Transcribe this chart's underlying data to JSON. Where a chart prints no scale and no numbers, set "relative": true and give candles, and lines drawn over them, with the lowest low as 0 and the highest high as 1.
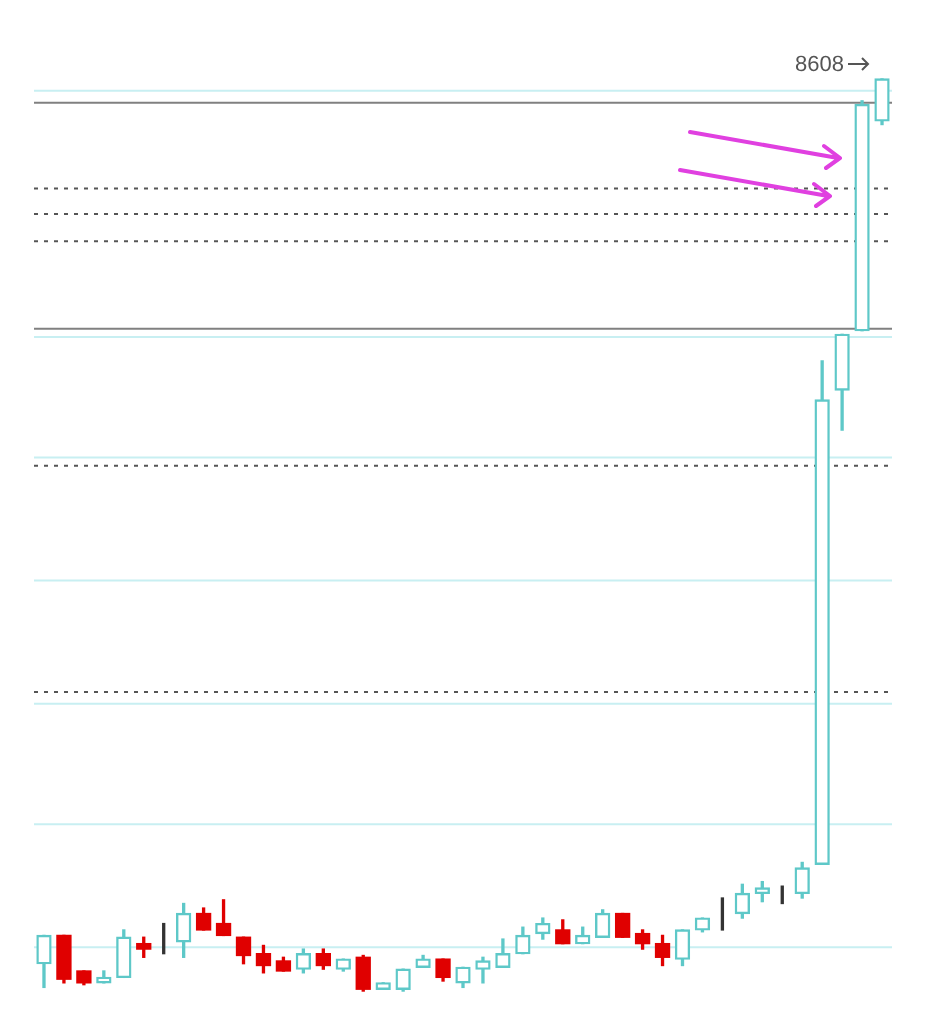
{
  "chart_data": {
    "type": "candlestick",
    "relative": true,
    "legend": false,
    "categories": [
      null,
      null,
      null,
      null,
      null,
      null,
      null,
      null,
      null,
      null,
      null,
      null,
      null,
      null,
      null,
      null,
      null,
      null,
      null,
      null,
      null,
      null,
      null,
      null,
      null,
      null,
      null,
      null,
      null,
      null,
      null,
      null,
      null,
      null,
      null,
      null,
      null,
      null,
      null,
      null,
      null,
      null,
      null
    ],
    "ohlc": [
      [
        0.03,
        0.061,
        0.004,
        0.061
      ],
      [
        0.061,
        0.061,
        0.009,
        0.013
      ],
      [
        0.022,
        0.022,
        0.007,
        0.009
      ],
      [
        0.009,
        0.022,
        0.009,
        0.015
      ],
      [
        0.015,
        0.067,
        0.015,
        0.059
      ],
      [
        0.052,
        0.059,
        0.037,
        0.046
      ],
      [
        0.048,
        0.074,
        0.041,
        0.048
      ],
      [
        0.054,
        0.096,
        0.037,
        0.085
      ],
      [
        0.085,
        0.091,
        0.067,
        0.067
      ],
      [
        0.074,
        0.1,
        0.061,
        0.061
      ],
      [
        0.059,
        0.059,
        0.03,
        0.039
      ],
      [
        0.041,
        0.05,
        0.02,
        0.028
      ],
      [
        0.033,
        0.037,
        0.022,
        0.022
      ],
      [
        0.024,
        0.046,
        0.02,
        0.041
      ],
      [
        0.041,
        0.046,
        0.024,
        0.028
      ],
      [
        0.024,
        0.035,
        0.022,
        0.035
      ],
      [
        0.037,
        0.039,
        0,
        0.002
      ],
      [
        0.002,
        0.009,
        0.002,
        0.009
      ],
      [
        0.002,
        0.024,
        0,
        0.024
      ],
      [
        0.026,
        0.039,
        0.026,
        0.035
      ],
      [
        0.035,
        0.035,
        0.011,
        0.015
      ],
      [
        0.009,
        0.026,
        0.004,
        0.026
      ],
      [
        0.024,
        0.037,
        0.009,
        0.033
      ],
      [
        0.026,
        0.057,
        0.026,
        0.041
      ],
      [
        0.041,
        0.07,
        0.041,
        0.061
      ],
      [
        0.063,
        0.08,
        0.057,
        0.074
      ],
      [
        0.067,
        0.078,
        0.052,
        0.052
      ],
      [
        0.052,
        0.07,
        0.052,
        0.061
      ],
      [
        0.059,
        0.089,
        0.059,
        0.085
      ],
      [
        0.085,
        0.085,
        0.059,
        0.059
      ],
      [
        0.063,
        0.067,
        0.046,
        0.052
      ],
      [
        0.052,
        0.061,
        0.028,
        0.037
      ],
      [
        0.035,
        0.067,
        0.028,
        0.067
      ],
      [
        0.067,
        0.08,
        0.065,
        0.08
      ],
      [
        0.08,
        0.102,
        0.067,
        0.08
      ],
      [
        0.085,
        0.117,
        0.08,
        0.107
      ],
      [
        0.107,
        0.12,
        0.098,
        0.113
      ],
      [
        0.107,
        0.115,
        0.096,
        0.107
      ],
      [
        0.107,
        0.141,
        0.102,
        0.135
      ],
      [
        0.139,
        0.691,
        0.139,
        0.648
      ],
      [
        0.659,
        0.72,
        0.615,
        0.72
      ],
      [
        0.724,
        0.976,
        0.724,
        0.972
      ],
      [
        0.954,
        1,
        0.95,
        1
      ]
    ],
    "colors": [
      "#5ec8c8",
      "#e00000",
      "#e00000",
      "#5ec8c8",
      "#5ec8c8",
      "#e00000",
      "#333333",
      "#5ec8c8",
      "#e00000",
      "#e00000",
      "#e00000",
      "#e00000",
      "#e00000",
      "#5ec8c8",
      "#e00000",
      "#5ec8c8",
      "#e00000",
      "#5ec8c8",
      "#5ec8c8",
      "#5ec8c8",
      "#e00000",
      "#5ec8c8",
      "#5ec8c8",
      "#5ec8c8",
      "#5ec8c8",
      "#5ec8c8",
      "#e00000",
      "#5ec8c8",
      "#5ec8c8",
      "#e00000",
      "#e00000",
      "#e00000",
      "#5ec8c8",
      "#5ec8c8",
      "#333333",
      "#5ec8c8",
      "#5ec8c8",
      "#333333",
      "#5ec8c8",
      "#5ec8c8",
      "#5ec8c8",
      "#5ec8c8",
      "#5ec8c8"
    ],
    "ref_lines": [
      {
        "axis": "y",
        "value": 0.987,
        "color": "#c8eff2",
        "line_style": "solid"
      },
      {
        "axis": "y",
        "value": 0.974,
        "color": "#808080",
        "line_style": "solid"
      },
      {
        "axis": "y",
        "value": 0.88,
        "color": "#555555",
        "line_style": "dotted"
      },
      {
        "axis": "y",
        "value": 0.852,
        "color": "#555555",
        "line_style": "dotted"
      },
      {
        "axis": "y",
        "value": 0.822,
        "color": "#555555",
        "line_style": "dotted"
      },
      {
        "axis": "y",
        "value": 0.726,
        "color": "#808080",
        "line_style": "solid"
      },
      {
        "axis": "y",
        "value": 0.717,
        "color": "#c8eff2",
        "line_style": "solid"
      },
      {
        "axis": "y",
        "value": 0.585,
        "color": "#c8eff2",
        "line_style": "solid"
      },
      {
        "axis": "y",
        "value": 0.576,
        "color": "#555555",
        "line_style": "dotted"
      },
      {
        "axis": "y",
        "value": 0.45,
        "color": "#c8eff2",
        "line_style": "solid"
      },
      {
        "axis": "y",
        "value": 0.328,
        "color": "#555555",
        "line_style": "dotted"
      },
      {
        "axis": "y",
        "value": 0.315,
        "color": "#c8eff2",
        "line_style": "solid"
      },
      {
        "axis": "y",
        "value": 0.183,
        "color": "#c8eff2",
        "line_style": "solid"
      },
      {
        "axis": "y",
        "value": 0.048,
        "color": "#c8eff2",
        "line_style": "solid"
      }
    ],
    "annotations": [
      "8608"
    ]
  }
}
